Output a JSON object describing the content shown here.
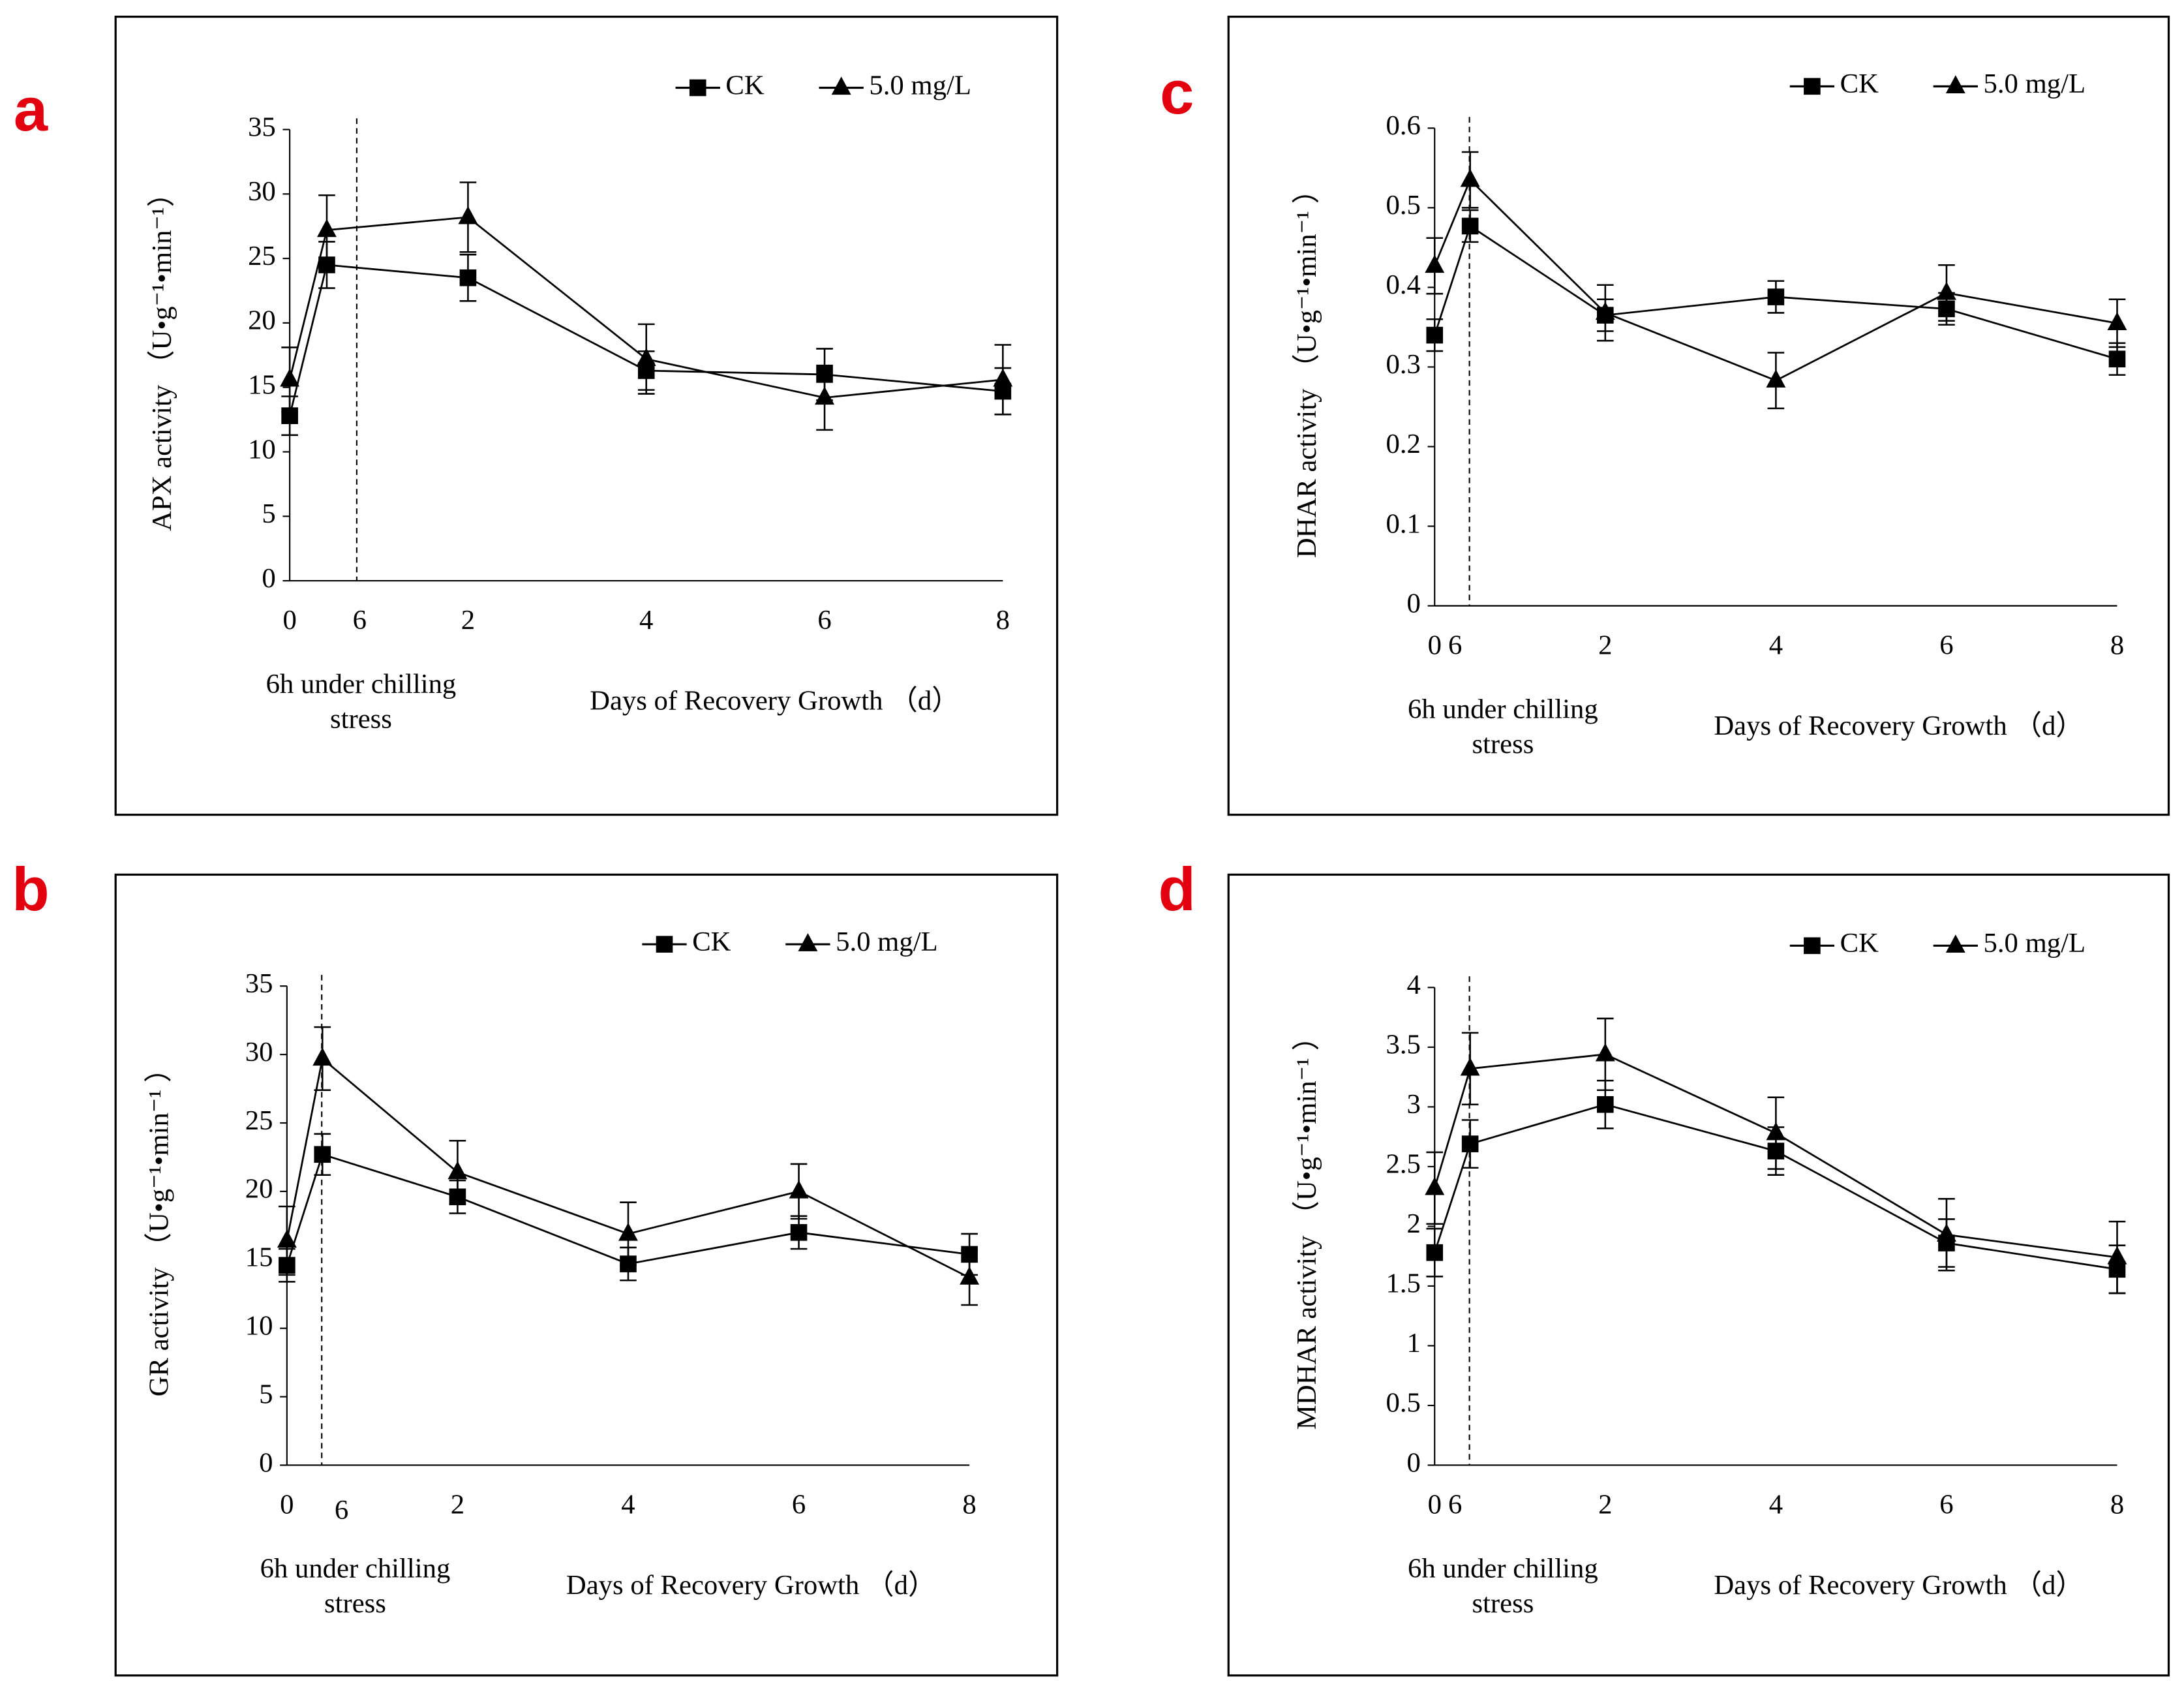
{
  "chart_data": [
    {
      "type": "line",
      "panel_label": "a",
      "y_label": "APX activity （U•g⁻¹•min⁻¹）",
      "categories": [
        "0",
        "6",
        "2",
        "4",
        "6",
        "8"
      ],
      "annotations": [
        "6h under chilling",
        "stress",
        "Days of Recovery Growth （d）"
      ],
      "ylim": [
        0,
        35
      ],
      "yticks": [
        0,
        5,
        10,
        15,
        20,
        25,
        30,
        35
      ],
      "legend": "upper right",
      "series": [
        {
          "name": "CK",
          "color": "#000000",
          "marker": "square",
          "values": [
            12.8,
            24.5,
            23.5,
            16.3,
            16.0,
            14.7
          ],
          "errors": [
            1.5,
            1.8,
            1.8,
            1.5,
            2.0,
            1.8
          ]
        },
        {
          "name": "5.0 mg/L",
          "color": "#000000",
          "marker": "triangle",
          "values": [
            15.6,
            27.2,
            28.2,
            17.2,
            14.2,
            15.6
          ],
          "errors": [
            2.5,
            2.7,
            2.7,
            2.7,
            2.5,
            2.7
          ]
        }
      ]
    },
    {
      "type": "line",
      "panel_label": "b",
      "y_label": "GR activity （U•g⁻¹•min⁻¹ ）",
      "categories": [
        "0",
        "6",
        "2",
        "4",
        "6",
        "8"
      ],
      "annotations": [
        "6h under chilling",
        "stress",
        "Days of Recovery Growth （d）"
      ],
      "ylim": [
        0,
        35
      ],
      "yticks": [
        0,
        5,
        10,
        15,
        20,
        25,
        30,
        35
      ],
      "legend": "upper right",
      "series": [
        {
          "name": "CK",
          "color": "#000000",
          "marker": "square",
          "values": [
            14.6,
            22.7,
            19.6,
            14.7,
            17.0,
            15.4
          ],
          "errors": [
            1.2,
            1.5,
            1.2,
            1.2,
            1.2,
            1.5
          ]
        },
        {
          "name": "5.0 mg/L",
          "color": "#000000",
          "marker": "triangle",
          "values": [
            16.4,
            29.7,
            21.4,
            16.9,
            20.0,
            13.7
          ],
          "errors": [
            2.5,
            2.3,
            2.3,
            2.3,
            2.0,
            2.0
          ]
        }
      ]
    },
    {
      "type": "line",
      "panel_label": "c",
      "y_label": "DHAR activity （U•g⁻¹•min⁻¹ ）",
      "categories": [
        "0",
        "6",
        "2",
        "4",
        "6",
        "8"
      ],
      "annotations": [
        "6h under chilling",
        "stress",
        "Days of Recovery Growth （d）"
      ],
      "ylim": [
        0,
        0.6
      ],
      "yticks": [
        0,
        0.1,
        0.2,
        0.3,
        0.4,
        0.5,
        0.6
      ],
      "legend": "upper right",
      "series": [
        {
          "name": "CK",
          "color": "#000000",
          "marker": "square",
          "values": [
            0.34,
            0.477,
            0.365,
            0.388,
            0.373,
            0.31
          ],
          "errors": [
            0.02,
            0.02,
            0.02,
            0.02,
            0.02,
            0.02
          ]
        },
        {
          "name": "5.0 mg/L",
          "color": "#000000",
          "marker": "triangle",
          "values": [
            0.427,
            0.535,
            0.368,
            0.283,
            0.393,
            0.355
          ],
          "errors": [
            0.035,
            0.035,
            0.035,
            0.035,
            0.035,
            0.03
          ]
        }
      ]
    },
    {
      "type": "line",
      "panel_label": "d",
      "y_label": "MDHAR activity （U•g⁻¹•min⁻¹ ）",
      "categories": [
        "0",
        "6",
        "2",
        "4",
        "6",
        "8"
      ],
      "annotations": [
        "6h under chilling",
        "stress",
        "Days of Recovery Growth （d）"
      ],
      "ylim": [
        0,
        4
      ],
      "yticks": [
        0,
        0.5,
        1,
        1.5,
        2,
        2.5,
        3,
        3.5,
        4
      ],
      "legend": "upper right",
      "series": [
        {
          "name": "CK",
          "color": "#000000",
          "marker": "square",
          "values": [
            1.78,
            2.69,
            3.02,
            2.63,
            1.86,
            1.64
          ],
          "errors": [
            0.2,
            0.2,
            0.2,
            0.2,
            0.2,
            0.2
          ]
        },
        {
          "name": "5.0 mg/L",
          "color": "#000000",
          "marker": "triangle",
          "values": [
            2.32,
            3.32,
            3.44,
            2.78,
            1.93,
            1.74
          ],
          "errors": [
            0.3,
            0.3,
            0.3,
            0.3,
            0.3,
            0.3
          ]
        }
      ]
    }
  ]
}
